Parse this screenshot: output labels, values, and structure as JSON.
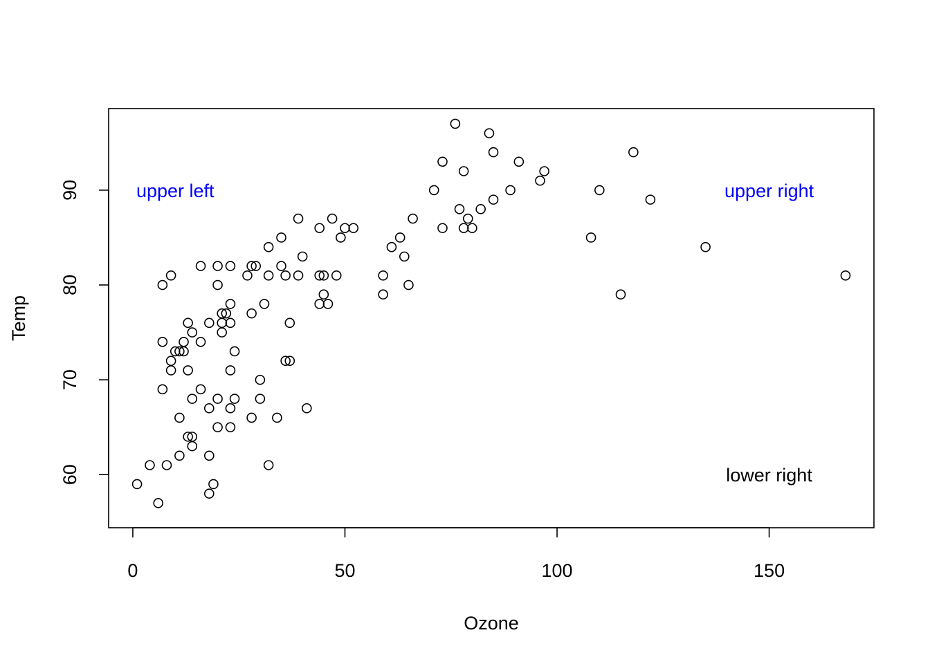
{
  "chart_data": {
    "type": "scatter",
    "xlabel": "Ozone",
    "ylabel": "Temp",
    "xlim": [
      -5.7,
      174.7
    ],
    "ylim": [
      54.4,
      98.6
    ],
    "x_ticks": [
      0,
      50,
      100,
      150
    ],
    "y_ticks": [
      60,
      70,
      80,
      90
    ],
    "grid": false,
    "point_style": "open-circle",
    "points": [
      {
        "x": 1,
        "y": 59
      },
      {
        "x": 4,
        "y": 61
      },
      {
        "x": 6,
        "y": 57
      },
      {
        "x": 7,
        "y": 80
      },
      {
        "x": 7,
        "y": 74
      },
      {
        "x": 7,
        "y": 69
      },
      {
        "x": 8,
        "y": 61
      },
      {
        "x": 9,
        "y": 81
      },
      {
        "x": 9,
        "y": 72
      },
      {
        "x": 9,
        "y": 71
      },
      {
        "x": 10,
        "y": 73
      },
      {
        "x": 11,
        "y": 73
      },
      {
        "x": 11,
        "y": 66
      },
      {
        "x": 11,
        "y": 62
      },
      {
        "x": 12,
        "y": 74
      },
      {
        "x": 12,
        "y": 73
      },
      {
        "x": 13,
        "y": 76
      },
      {
        "x": 13,
        "y": 71
      },
      {
        "x": 13,
        "y": 64
      },
      {
        "x": 14,
        "y": 75
      },
      {
        "x": 14,
        "y": 68
      },
      {
        "x": 14,
        "y": 64
      },
      {
        "x": 14,
        "y": 63
      },
      {
        "x": 16,
        "y": 82
      },
      {
        "x": 16,
        "y": 74
      },
      {
        "x": 16,
        "y": 69
      },
      {
        "x": 18,
        "y": 76
      },
      {
        "x": 18,
        "y": 67
      },
      {
        "x": 18,
        "y": 62
      },
      {
        "x": 18,
        "y": 58
      },
      {
        "x": 19,
        "y": 59
      },
      {
        "x": 20,
        "y": 82
      },
      {
        "x": 20,
        "y": 80
      },
      {
        "x": 20,
        "y": 68
      },
      {
        "x": 20,
        "y": 65
      },
      {
        "x": 21,
        "y": 77
      },
      {
        "x": 21,
        "y": 76
      },
      {
        "x": 21,
        "y": 75
      },
      {
        "x": 22,
        "y": 77
      },
      {
        "x": 23,
        "y": 82
      },
      {
        "x": 23,
        "y": 78
      },
      {
        "x": 23,
        "y": 76
      },
      {
        "x": 23,
        "y": 71
      },
      {
        "x": 23,
        "y": 67
      },
      {
        "x": 23,
        "y": 65
      },
      {
        "x": 24,
        "y": 73
      },
      {
        "x": 24,
        "y": 68
      },
      {
        "x": 27,
        "y": 81
      },
      {
        "x": 28,
        "y": 82
      },
      {
        "x": 28,
        "y": 77
      },
      {
        "x": 28,
        "y": 66
      },
      {
        "x": 29,
        "y": 82
      },
      {
        "x": 30,
        "y": 70
      },
      {
        "x": 30,
        "y": 68
      },
      {
        "x": 31,
        "y": 78
      },
      {
        "x": 32,
        "y": 84
      },
      {
        "x": 32,
        "y": 81
      },
      {
        "x": 32,
        "y": 61
      },
      {
        "x": 34,
        "y": 66
      },
      {
        "x": 35,
        "y": 85
      },
      {
        "x": 35,
        "y": 82
      },
      {
        "x": 36,
        "y": 81
      },
      {
        "x": 36,
        "y": 72
      },
      {
        "x": 37,
        "y": 76
      },
      {
        "x": 37,
        "y": 72
      },
      {
        "x": 39,
        "y": 87
      },
      {
        "x": 39,
        "y": 81
      },
      {
        "x": 40,
        "y": 83
      },
      {
        "x": 41,
        "y": 67
      },
      {
        "x": 44,
        "y": 86
      },
      {
        "x": 44,
        "y": 81
      },
      {
        "x": 44,
        "y": 78
      },
      {
        "x": 45,
        "y": 81
      },
      {
        "x": 45,
        "y": 79
      },
      {
        "x": 46,
        "y": 78
      },
      {
        "x": 47,
        "y": 87
      },
      {
        "x": 48,
        "y": 81
      },
      {
        "x": 49,
        "y": 85
      },
      {
        "x": 50,
        "y": 86
      },
      {
        "x": 52,
        "y": 86
      },
      {
        "x": 59,
        "y": 81
      },
      {
        "x": 59,
        "y": 79
      },
      {
        "x": 61,
        "y": 84
      },
      {
        "x": 63,
        "y": 85
      },
      {
        "x": 64,
        "y": 83
      },
      {
        "x": 65,
        "y": 80
      },
      {
        "x": 66,
        "y": 87
      },
      {
        "x": 71,
        "y": 90
      },
      {
        "x": 73,
        "y": 93
      },
      {
        "x": 73,
        "y": 86
      },
      {
        "x": 76,
        "y": 97
      },
      {
        "x": 77,
        "y": 88
      },
      {
        "x": 78,
        "y": 92
      },
      {
        "x": 78,
        "y": 86
      },
      {
        "x": 79,
        "y": 87
      },
      {
        "x": 80,
        "y": 86
      },
      {
        "x": 82,
        "y": 88
      },
      {
        "x": 84,
        "y": 96
      },
      {
        "x": 85,
        "y": 94
      },
      {
        "x": 85,
        "y": 89
      },
      {
        "x": 89,
        "y": 90
      },
      {
        "x": 91,
        "y": 93
      },
      {
        "x": 96,
        "y": 91
      },
      {
        "x": 97,
        "y": 92
      },
      {
        "x": 108,
        "y": 85
      },
      {
        "x": 110,
        "y": 90
      },
      {
        "x": 115,
        "y": 79
      },
      {
        "x": 118,
        "y": 94
      },
      {
        "x": 122,
        "y": 89
      },
      {
        "x": 135,
        "y": 84
      },
      {
        "x": 168,
        "y": 81
      }
    ],
    "annotations": [
      {
        "text": "upper left",
        "x": 10,
        "y": 90,
        "color": "#0000FF"
      },
      {
        "text": "upper right",
        "x": 150,
        "y": 90,
        "color": "#0000FF"
      },
      {
        "text": "lower right",
        "x": 150,
        "y": 60,
        "color": "#000000"
      }
    ]
  }
}
